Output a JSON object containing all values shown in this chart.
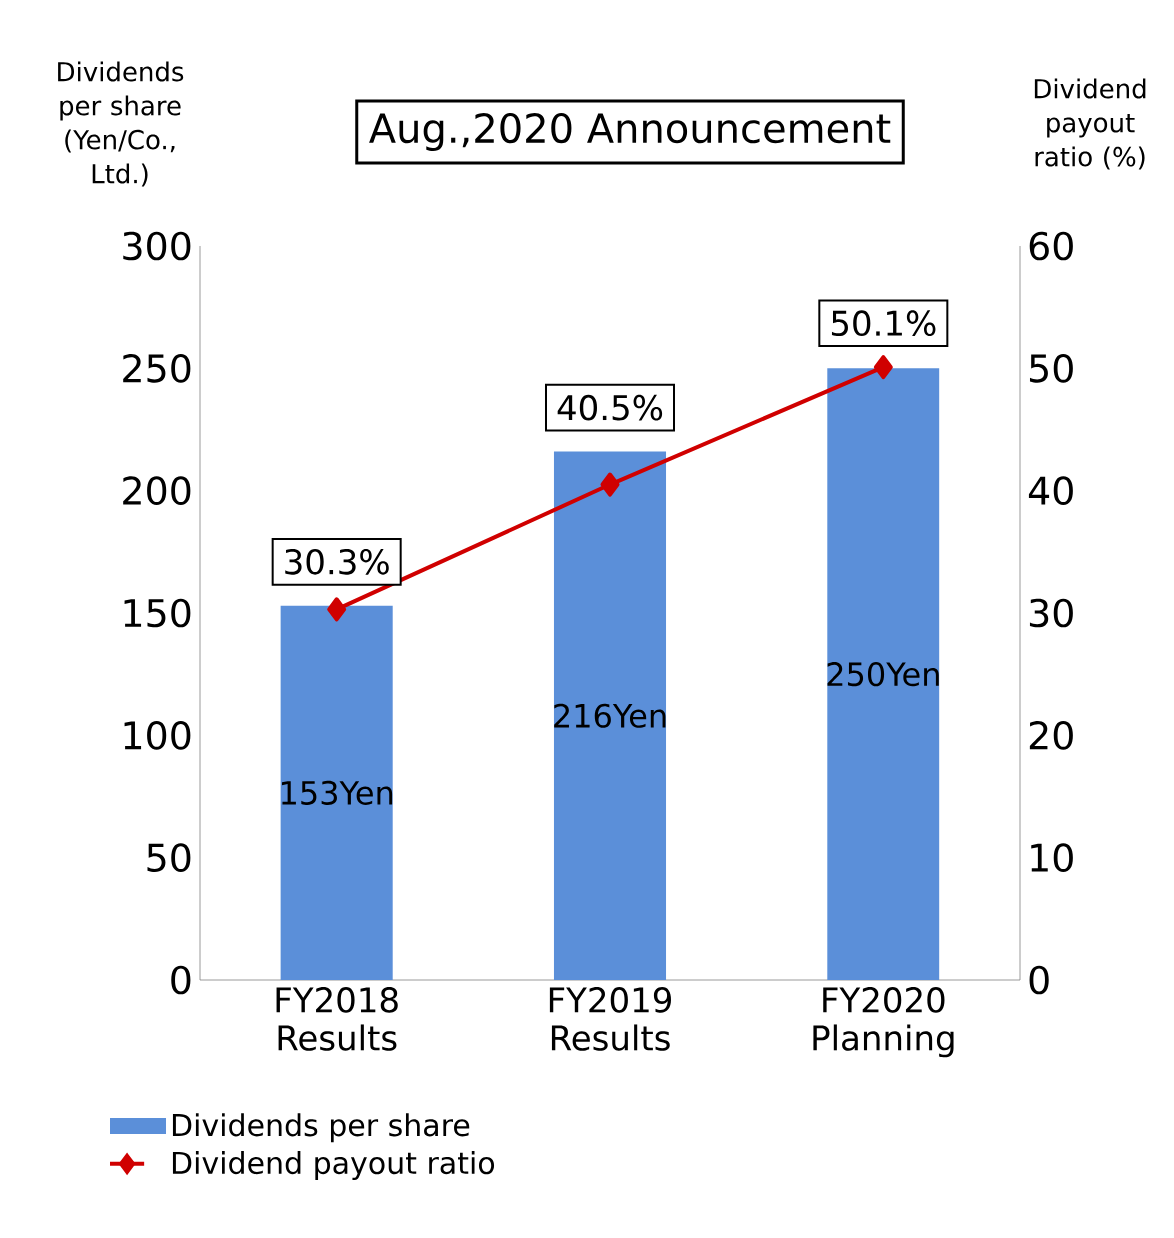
{
  "chart_data": {
    "type": "bar",
    "title": "Aug.,2020 Announcement",
    "ylabel": "Dividends per share (Yen/Co., Ltd.)",
    "y2label": "Dividend payout ratio (%)",
    "categories": [
      "FY2018 Results",
      "FY2019 Results",
      "FY2020 Planning"
    ],
    "series": [
      {
        "name": "Dividends per share",
        "color": "#5b8fd9",
        "values": [
          153,
          216,
          250
        ],
        "value_labels": [
          "153Yen",
          "216Yen",
          "250Yen"
        ]
      },
      {
        "name": "Dividend payout ratio",
        "type": "line",
        "axis": "y2",
        "color": "#d00000",
        "marker": "diamond",
        "values": [
          30.3,
          40.5,
          50.1
        ],
        "value_labels": [
          "30.3%",
          "40.5%",
          "50.1%"
        ]
      }
    ],
    "ylim": [
      0,
      300
    ],
    "yticks": [
      0,
      50,
      100,
      150,
      200,
      250,
      300
    ],
    "y2lim": [
      0,
      60
    ],
    "y2ticks": [
      0,
      10,
      20,
      30,
      40,
      50,
      60
    ],
    "legend": "bottom",
    "grid": false
  }
}
